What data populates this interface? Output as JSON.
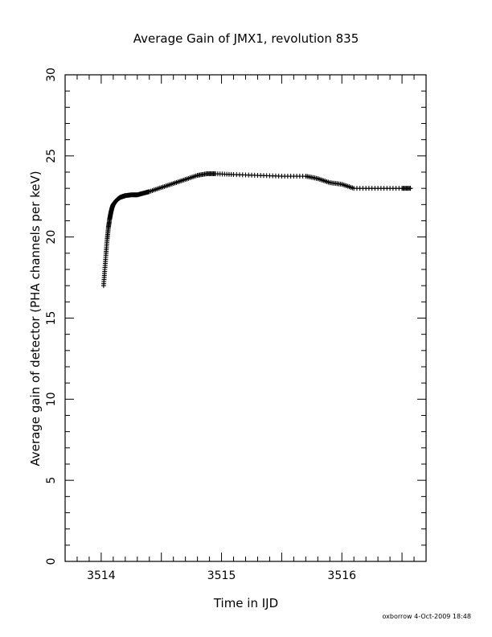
{
  "chart_data": {
    "type": "scatter",
    "title": "Average Gain of JMX1, revolution 835",
    "xlabel": "Time in IJD",
    "ylabel": "Average gain of detector (PHA channels per keV)",
    "xlim": [
      3513.7,
      3516.7
    ],
    "ylim": [
      0,
      30
    ],
    "x_ticks": [
      3514,
      3515,
      3516
    ],
    "x_tick_labels": [
      "3514",
      "3515",
      "3516"
    ],
    "y_ticks": [
      0,
      5,
      10,
      15,
      20,
      25,
      30
    ],
    "y_tick_labels": [
      "0",
      "5",
      "10",
      "15",
      "20",
      "25",
      "30"
    ],
    "grid": false,
    "marker": "plus",
    "series": [
      {
        "x": [
          3514.02,
          3514.03,
          3514.04,
          3514.05,
          3514.06,
          3514.07,
          3514.08,
          3514.09,
          3514.1,
          3514.12,
          3514.14,
          3514.16,
          3514.18,
          3514.2,
          3514.25,
          3514.3,
          3514.35,
          3514.4,
          3514.5,
          3514.6,
          3514.7,
          3514.8,
          3514.88,
          3514.95,
          3515.1,
          3515.3,
          3515.5,
          3515.7,
          3515.8,
          3515.9,
          3516.0,
          3516.1,
          3516.3,
          3516.5,
          3516.57
        ],
        "y": [
          17.0,
          18.0,
          19.0,
          19.9,
          20.6,
          21.1,
          21.5,
          21.8,
          22.0,
          22.2,
          22.35,
          22.45,
          22.5,
          22.55,
          22.6,
          22.6,
          22.7,
          22.8,
          23.05,
          23.3,
          23.55,
          23.8,
          23.9,
          23.9,
          23.85,
          23.8,
          23.75,
          23.75,
          23.6,
          23.35,
          23.25,
          23.0,
          23.0,
          23.0,
          23.0
        ]
      }
    ]
  },
  "footer": {
    "stamp": "oxborrow  4-Oct-2009 18:48"
  }
}
